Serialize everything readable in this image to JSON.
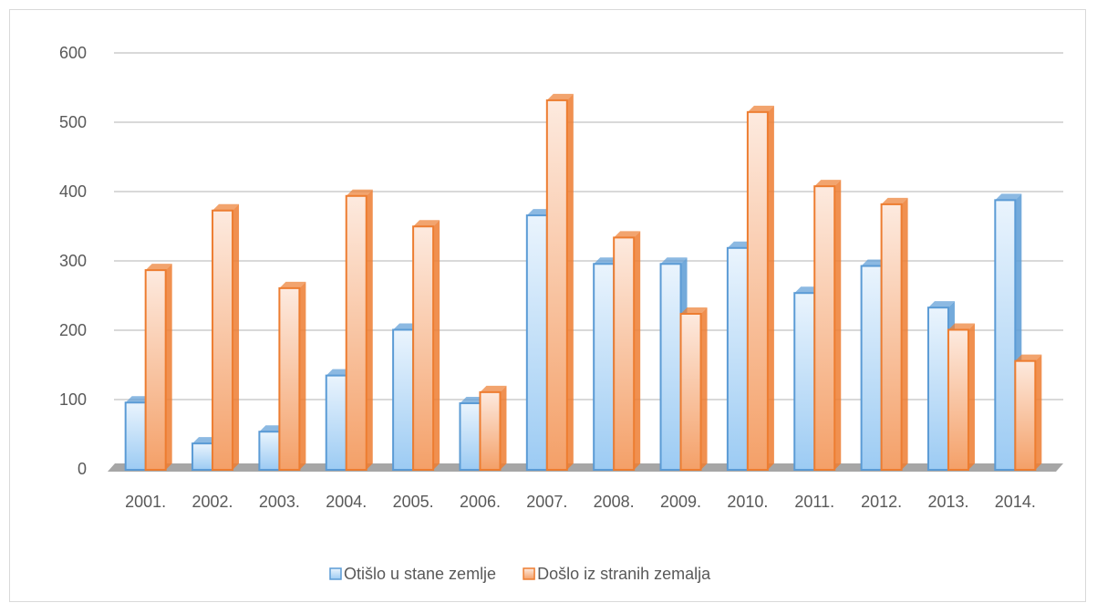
{
  "chart_data": {
    "type": "bar3d",
    "categories": [
      "2001.",
      "2002.",
      "2003.",
      "2004.",
      "2005.",
      "2006.",
      "2007.",
      "2008.",
      "2009.",
      "2010.",
      "2011.",
      "2012.",
      "2013.",
      "2014."
    ],
    "series": [
      {
        "name": "Otišlo u stane zemlje",
        "color": "#5b9bd5",
        "values": [
          97,
          38,
          55,
          136,
          202,
          96,
          367,
          297,
          297,
          320,
          255,
          294,
          234,
          389
        ]
      },
      {
        "name": "Došlo iz stranih zemalja",
        "color": "#ed7d31",
        "values": [
          288,
          374,
          262,
          395,
          351,
          112,
          533,
          335,
          225,
          516,
          409,
          383,
          202,
          157
        ]
      }
    ],
    "ylim": [
      0,
      600
    ],
    "yticks": [
      0,
      100,
      200,
      300,
      400,
      500,
      600
    ],
    "grid": true,
    "legend": "bottom"
  }
}
